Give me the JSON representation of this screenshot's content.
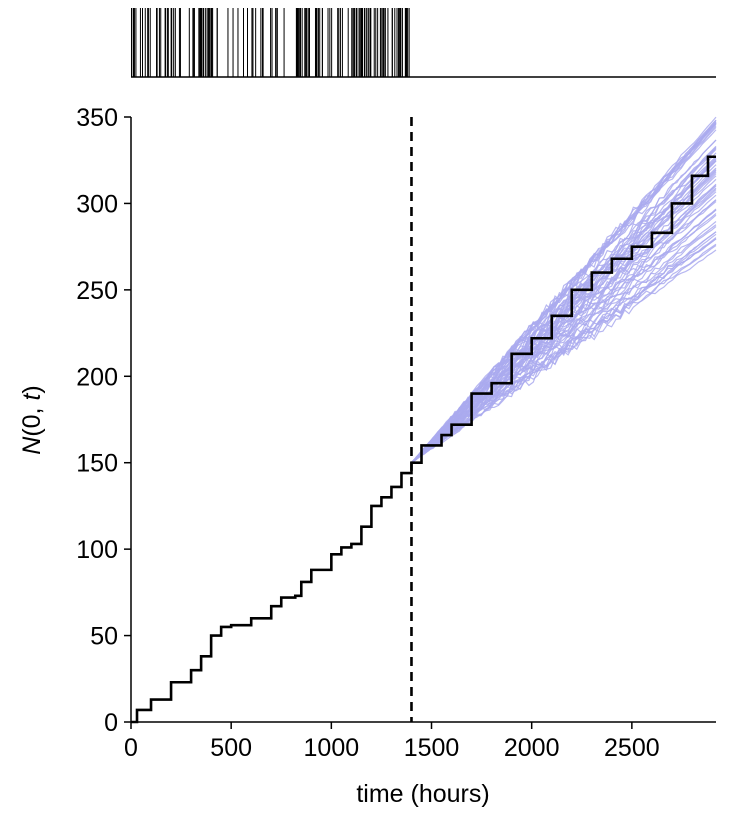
{
  "chart_data": [
    {
      "type": "event_raster",
      "panel": "top",
      "xlim": [
        0,
        2920
      ],
      "events": [],
      "event_color": "#000000"
    },
    {
      "type": "line",
      "panel": "main",
      "xlabel": "time (hours)",
      "ylabel": "N(0, t)",
      "xlim": [
        0,
        2920
      ],
      "ylim": [
        0,
        350
      ],
      "xticks": [
        0,
        500,
        1000,
        1500,
        2000,
        2500
      ],
      "yticks": [
        0,
        50,
        100,
        150,
        200,
        250,
        300,
        350
      ],
      "vline": {
        "x": 1400,
        "style": "dashed",
        "color": "#000000"
      },
      "observed": {
        "color": "#000000",
        "points": [
          [
            0,
            0
          ],
          [
            30,
            7
          ],
          [
            100,
            13
          ],
          [
            200,
            23
          ],
          [
            300,
            30
          ],
          [
            350,
            38
          ],
          [
            400,
            50
          ],
          [
            450,
            55
          ],
          [
            500,
            56
          ],
          [
            600,
            60
          ],
          [
            700,
            67
          ],
          [
            750,
            72
          ],
          [
            820,
            73
          ],
          [
            850,
            81
          ],
          [
            900,
            88
          ],
          [
            1000,
            97
          ],
          [
            1050,
            101
          ],
          [
            1100,
            103
          ],
          [
            1150,
            113
          ],
          [
            1200,
            125
          ],
          [
            1250,
            130
          ],
          [
            1300,
            136
          ],
          [
            1350,
            144
          ],
          [
            1400,
            150
          ],
          [
            1450,
            160
          ],
          [
            1550,
            166
          ],
          [
            1600,
            172
          ],
          [
            1700,
            190
          ],
          [
            1800,
            196
          ],
          [
            1900,
            213
          ],
          [
            2000,
            222
          ],
          [
            2100,
            235
          ],
          [
            2200,
            250
          ],
          [
            2300,
            260
          ],
          [
            2400,
            268
          ],
          [
            2500,
            275
          ],
          [
            2600,
            283
          ],
          [
            2700,
            300
          ],
          [
            2800,
            316
          ],
          [
            2880,
            327
          ],
          [
            2920,
            327
          ]
        ]
      },
      "simulations": {
        "color": "#aaaaee",
        "count": 60,
        "x_start": 1400,
        "y_start": 150,
        "x_end": 2920,
        "y_end_range": [
          270,
          350
        ]
      }
    }
  ]
}
